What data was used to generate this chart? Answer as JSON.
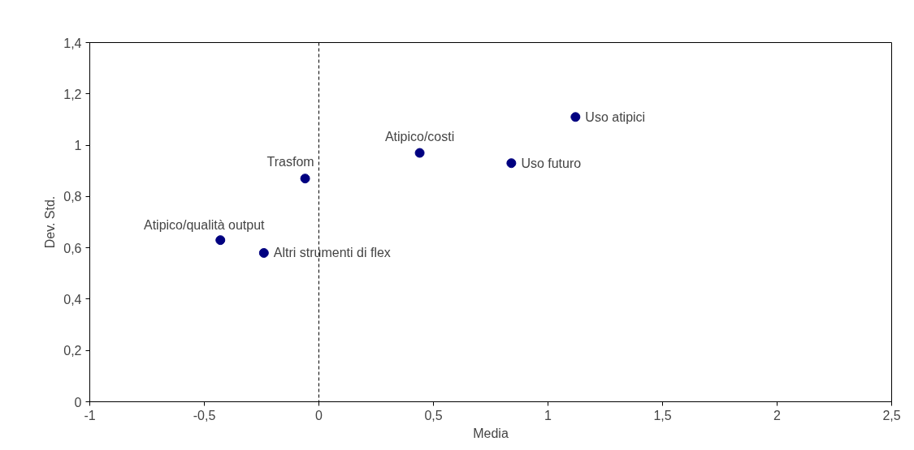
{
  "chart_data": {
    "type": "scatter",
    "xlabel": "Media",
    "ylabel": "Dev. Std.",
    "x": [
      1.12,
      0.44,
      0.84,
      -0.06,
      -0.43,
      -0.24
    ],
    "values": [
      1.11,
      0.97,
      0.93,
      0.87,
      0.63,
      0.58
    ],
    "color": "#000080",
    "marker": "circle",
    "grid": false,
    "xlim": [
      -1,
      2.5
    ],
    "xticks": [
      -1,
      {
        "value": -0.5,
        "label": "-0,5"
      },
      0,
      {
        "value": 0.5,
        "label": "0,5"
      },
      1,
      {
        "value": 1.5,
        "label": "1,5"
      },
      2,
      {
        "value": 2.5,
        "label": "2,5"
      }
    ],
    "ylim": [
      0,
      1.4
    ],
    "yticks": [
      0,
      {
        "value": 0.2,
        "label": "0,2"
      },
      {
        "value": 0.4,
        "label": "0,4"
      },
      {
        "value": 0.6,
        "label": "0,6"
      },
      {
        "value": 0.8,
        "label": "0,8"
      },
      1,
      {
        "value": 1.2,
        "label": "1,2"
      },
      {
        "value": 1.4,
        "label": "1,4"
      }
    ],
    "ref_lines": [
      {
        "axis": "x",
        "value": 0,
        "color": "#000000",
        "line_style": "dashed"
      }
    ],
    "annotations": [
      {
        "text": "Uso atipici",
        "x": 1.12,
        "y": 1.11
      },
      {
        "text": "Atipico/costi",
        "x": 0.44,
        "y": 0.97
      },
      {
        "text": "Uso futuro",
        "x": 0.84,
        "y": 0.93
      },
      {
        "text": "Trasfom",
        "x": -0.06,
        "y": 0.87
      },
      {
        "text": "Atipico/qualità output",
        "x": -0.43,
        "y": 0.63
      },
      {
        "text": "Altri strumenti di flex",
        "x": -0.24,
        "y": 0.58
      }
    ]
  }
}
